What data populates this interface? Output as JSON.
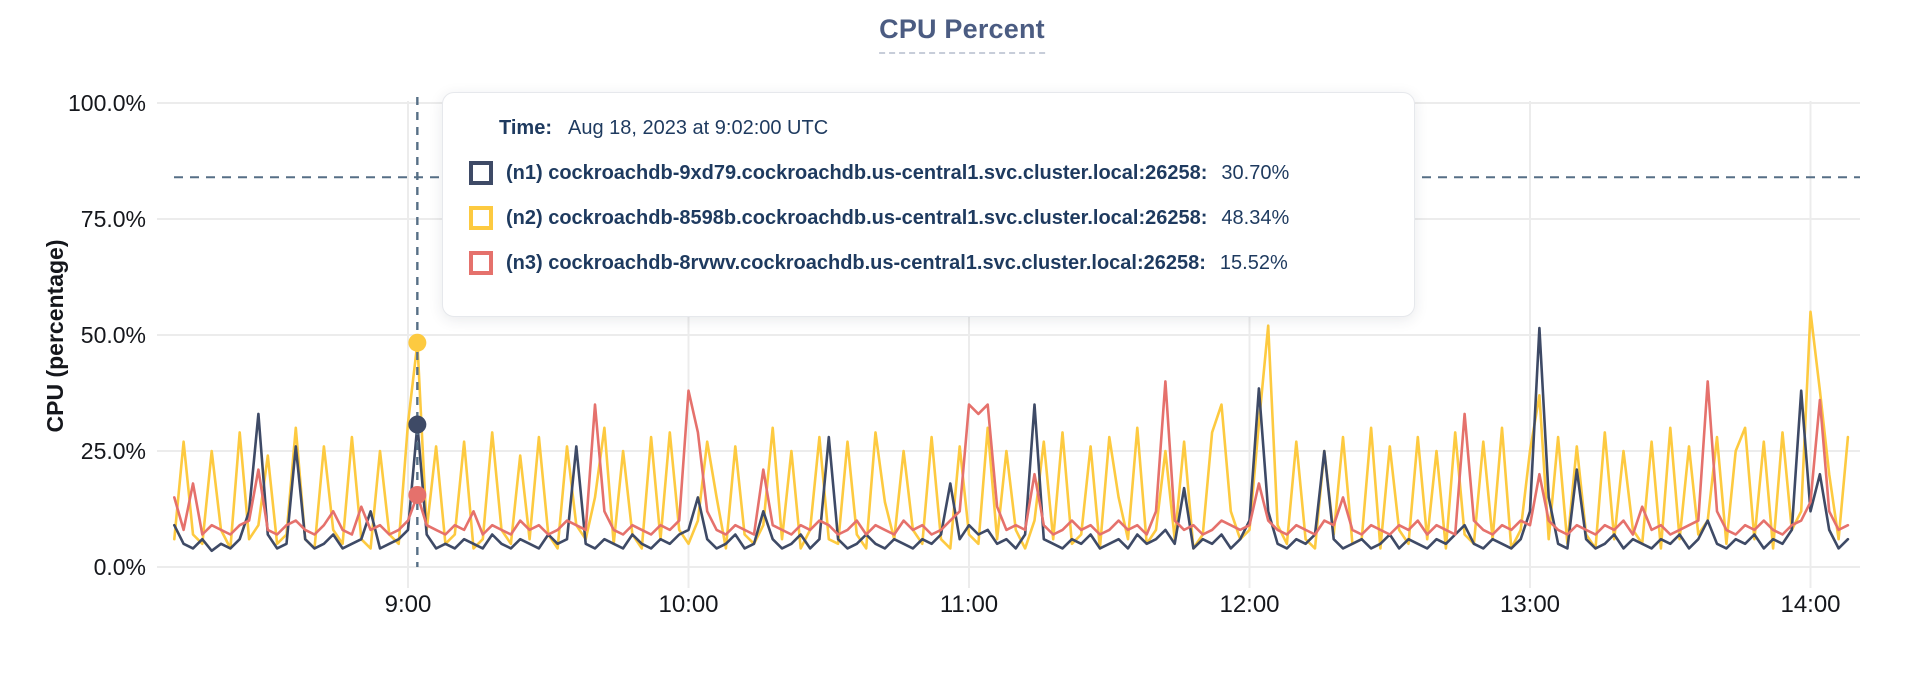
{
  "header": {
    "title": "CPU Percent"
  },
  "tooltip": {
    "time_label": "Time:",
    "time_value": "Aug 18, 2023 at 9:02:00 UTC",
    "rows": [
      {
        "label": "(n1) cockroachdb-9xd79.cockroachdb.us-central1.svc.cluster.local:26258:",
        "value": "30.70%",
        "color": "#3e4a66"
      },
      {
        "label": "(n2) cockroachdb-8598b.cockroachdb.us-central1.svc.cluster.local:26258:",
        "value": "48.34%",
        "color": "#fdca40"
      },
      {
        "label": "(n3) cockroachdb-8rvwv.cockroachdb.us-central1.svc.cluster.local:26258:",
        "value": "15.52%",
        "color": "#e5716c"
      }
    ]
  },
  "colors": {
    "grid": "#ececec",
    "dashed_guides": "#566f86",
    "tick_text": "#15171c",
    "title": "#4b5c82"
  },
  "chart_data": {
    "type": "line",
    "title": "CPU Percent",
    "ylabel": "CPU (percentage)",
    "ylim": [
      0,
      100
    ],
    "grid": true,
    "y_ticks": [
      {
        "v": 0,
        "label": "0.0%"
      },
      {
        "v": 25,
        "label": "25.0%"
      },
      {
        "v": 50,
        "label": "50.0%"
      },
      {
        "v": 75,
        "label": "75.0%"
      },
      {
        "v": 100,
        "label": "100.0%"
      }
    ],
    "x_ticks": [
      {
        "t": 9,
        "label": "9:00"
      },
      {
        "t": 10,
        "label": "10:00"
      },
      {
        "t": 11,
        "label": "11:00"
      },
      {
        "t": 12,
        "label": "12:00"
      },
      {
        "t": 13,
        "label": "13:00"
      },
      {
        "t": 14,
        "label": "14:00"
      }
    ],
    "x_start_hours": 8.1667,
    "x_step_hours": 0.0333333,
    "threshold_percent": 84,
    "cursor": {
      "t": 9.0333,
      "time_text": "9:02:00"
    },
    "series": [
      {
        "id": "n2",
        "color": "#fdca40",
        "cursor_value": 48.34,
        "values": [
          6,
          27,
          7,
          5,
          25,
          8,
          4,
          29,
          6,
          9,
          24,
          5,
          7,
          30,
          6,
          4,
          26,
          8,
          5,
          28,
          6,
          4,
          25,
          7,
          5,
          31,
          48.3,
          8,
          26,
          5,
          7,
          27,
          4,
          6,
          29,
          8,
          5,
          24,
          6,
          28,
          7,
          4,
          26,
          9,
          6,
          15,
          30,
          5,
          25,
          7,
          4,
          28,
          6,
          29,
          8,
          5,
          10,
          27,
          15,
          4,
          26,
          7,
          5,
          9,
          30,
          6,
          25,
          4,
          8,
          28,
          6,
          5,
          27,
          7,
          4,
          29,
          14,
          6,
          25,
          8,
          5,
          28,
          6,
          4,
          26,
          7,
          5,
          30,
          6,
          25,
          8,
          4,
          10,
          27,
          6,
          29,
          5,
          7,
          26,
          4,
          28,
          15,
          6,
          30,
          5,
          8,
          25,
          6,
          27,
          4,
          7,
          29,
          35,
          12,
          6,
          8,
          31,
          52,
          9,
          5,
          27,
          6,
          4,
          25,
          7,
          28,
          5,
          6,
          30,
          4,
          26,
          8,
          5,
          28,
          6,
          25,
          4,
          29,
          7,
          5,
          27,
          6,
          30,
          4,
          8,
          25,
          37,
          6,
          28,
          5,
          26,
          7,
          4,
          29,
          6,
          25,
          8,
          5,
          27,
          4,
          30,
          6,
          26,
          7,
          10,
          28,
          5,
          25,
          30,
          6,
          27,
          4,
          29,
          8,
          12,
          55,
          38,
          20,
          6,
          28
        ]
      },
      {
        "id": "n1",
        "color": "#3e4a66",
        "cursor_value": 30.7,
        "values": [
          9,
          5,
          4,
          6,
          3.5,
          5,
          4,
          6,
          12,
          33,
          7,
          4,
          5,
          26,
          6,
          4,
          5,
          7,
          4,
          5,
          6,
          12,
          4,
          5,
          6,
          8,
          30.7,
          7,
          4,
          5,
          4,
          6,
          5,
          4,
          7,
          5,
          4,
          6,
          5,
          4,
          7,
          5,
          6,
          26,
          5,
          4,
          6,
          5,
          4,
          7,
          5,
          4,
          6,
          5,
          7,
          8,
          15,
          6,
          4,
          5,
          7,
          4,
          5,
          12,
          6,
          4,
          5,
          7,
          4,
          6,
          28,
          6,
          4,
          5,
          7,
          5,
          4,
          6,
          5,
          4,
          6,
          5,
          7,
          18,
          6,
          9,
          7,
          8,
          5,
          6,
          4,
          7,
          35,
          6,
          5,
          4,
          6,
          5,
          7,
          4,
          5,
          6,
          4,
          7,
          5,
          6,
          8,
          5,
          17,
          4,
          6,
          5,
          7,
          4,
          6,
          10,
          38.5,
          12,
          5,
          4,
          6,
          5,
          7,
          25,
          6,
          4,
          5,
          6,
          4,
          5,
          7,
          4,
          6,
          5,
          4,
          6,
          5,
          7,
          9,
          5,
          4,
          6,
          5,
          4,
          6,
          12,
          51.5,
          15,
          5,
          4,
          21,
          6,
          4,
          5,
          7,
          4,
          6,
          5,
          4,
          6,
          5,
          7,
          4,
          6,
          10,
          5,
          4,
          6,
          5,
          7,
          4,
          6,
          5,
          8,
          38,
          12,
          20,
          8,
          4,
          6
        ]
      },
      {
        "id": "n3",
        "color": "#e5716c",
        "cursor_value": 15.52,
        "values": [
          15,
          8,
          18,
          7,
          9,
          8,
          7,
          9,
          10,
          21,
          8,
          7,
          9,
          10,
          8,
          7,
          9,
          12,
          8,
          7,
          13,
          8,
          9,
          7,
          8,
          10,
          15.5,
          9,
          8,
          7,
          9,
          8,
          12,
          7,
          9,
          8,
          7,
          10,
          8,
          9,
          7,
          8,
          10,
          9,
          8,
          35,
          12,
          8,
          7,
          9,
          8,
          7,
          9,
          8,
          10,
          38,
          29,
          12,
          8,
          7,
          9,
          8,
          7,
          21,
          9,
          8,
          7,
          9,
          8,
          10,
          9,
          7,
          8,
          10,
          7,
          9,
          8,
          7,
          10,
          8,
          9,
          7,
          8,
          10,
          12,
          35,
          33,
          35,
          13,
          8,
          9,
          8,
          20,
          9,
          7,
          8,
          10,
          8,
          9,
          7,
          8,
          10,
          8,
          9,
          7,
          12,
          40,
          10,
          8,
          9,
          7,
          8,
          10,
          9,
          8,
          9,
          18,
          10,
          8,
          7,
          9,
          8,
          7,
          10,
          9,
          15,
          8,
          7,
          9,
          8,
          7,
          9,
          8,
          10,
          7,
          9,
          8,
          7,
          33,
          10,
          8,
          7,
          9,
          8,
          10,
          9,
          20,
          10,
          8,
          7,
          9,
          8,
          7,
          9,
          8,
          10,
          7,
          13,
          8,
          9,
          7,
          8,
          9,
          10,
          40,
          12,
          8,
          7,
          9,
          8,
          10,
          8,
          7,
          9,
          10,
          14,
          36,
          12,
          8,
          9
        ]
      }
    ]
  }
}
